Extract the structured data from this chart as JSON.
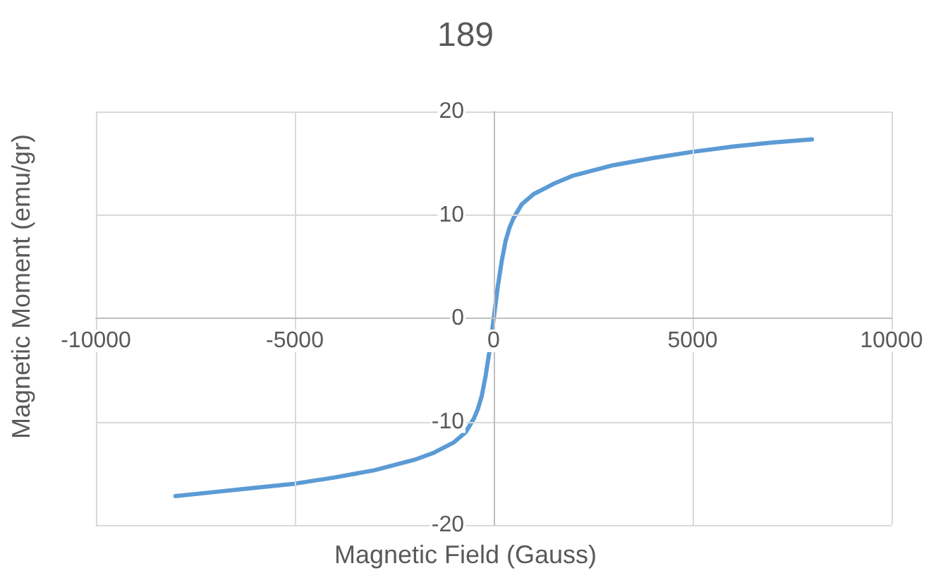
{
  "chart_data": {
    "type": "line",
    "title": "189",
    "xlabel": "Magnetic Field (Gauss)",
    "ylabel": "Magnetic Moment (emu/gr)",
    "series": [
      {
        "color": "#5b9bd5",
        "x": [
          -8000,
          -7000,
          -6000,
          -5000,
          -4000,
          -3000,
          -2000,
          -1500,
          -1000,
          -700,
          -500,
          -400,
          -300,
          -200,
          -100,
          0,
          100,
          200,
          300,
          400,
          500,
          700,
          1000,
          1500,
          2000,
          3000,
          4000,
          5000,
          6000,
          7000,
          8000
        ],
        "values": [
          -17.2,
          -16.8,
          -16.4,
          -16,
          -15.4,
          -14.7,
          -13.7,
          -13,
          -12,
          -11,
          -9.7,
          -8.8,
          -7.5,
          -5.5,
          -3,
          0,
          3,
          5.5,
          7.5,
          8.8,
          9.7,
          11,
          12,
          13,
          13.8,
          14.8,
          15.5,
          16.1,
          16.6,
          17,
          17.3
        ]
      }
    ],
    "xlim": [
      -10000,
      10000
    ],
    "xticks": [
      -10000,
      -5000,
      0,
      5000,
      10000
    ],
    "ylim": [
      -20,
      20
    ],
    "yticks": [
      -20,
      -10,
      0,
      10,
      20
    ],
    "grid": true,
    "marker": "none",
    "line_style": "solid"
  }
}
